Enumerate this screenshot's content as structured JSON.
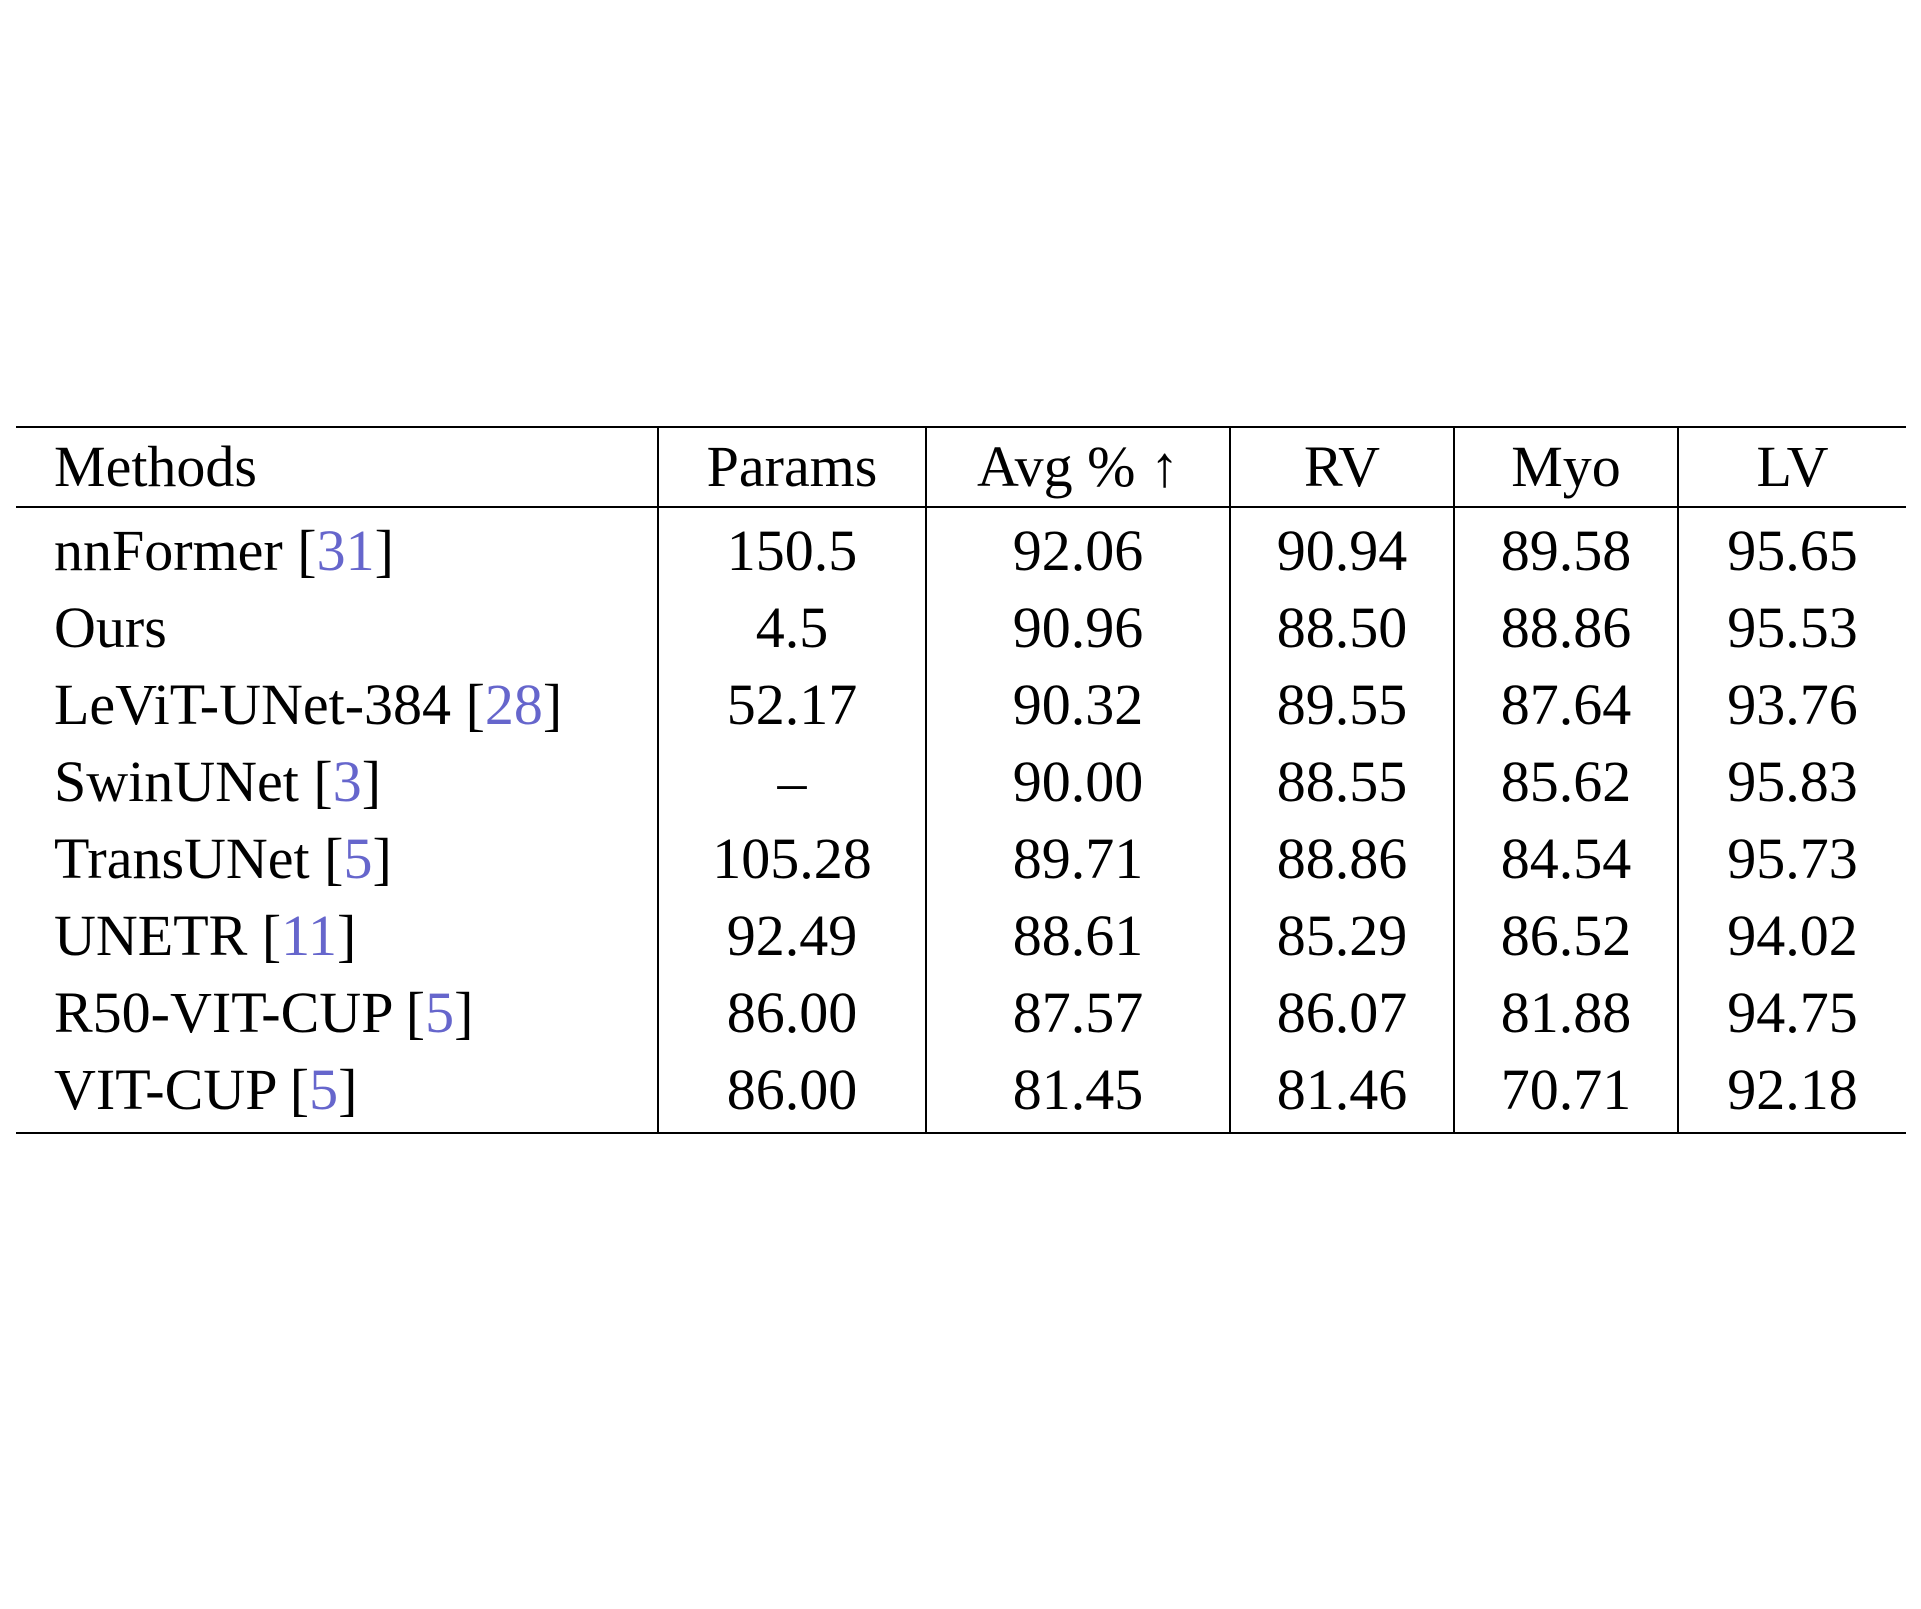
{
  "table": {
    "headers": [
      "Methods",
      "Params",
      "Avg % ↑",
      "RV",
      "Myo",
      "LV"
    ],
    "rows": [
      {
        "method": "nnFormer",
        "ref": "31",
        "params": "150.5",
        "avg": "92.06",
        "rv": "90.94",
        "myo": "89.58",
        "lv": "95.65",
        "bold": false
      },
      {
        "method": "Ours",
        "ref": "",
        "params": "4.5",
        "avg": "90.96",
        "rv": "88.50",
        "myo": "88.86",
        "lv": "95.53",
        "bold": true
      },
      {
        "method": "LeViT-UNet-384",
        "ref": "28",
        "params": "52.17",
        "avg": "90.32",
        "rv": "89.55",
        "myo": "87.64",
        "lv": "93.76",
        "bold": false
      },
      {
        "method": "SwinUNet",
        "ref": "3",
        "params": "–",
        "avg": "90.00",
        "rv": "88.55",
        "myo": "85.62",
        "lv": "95.83",
        "bold": false
      },
      {
        "method": "TransUNet",
        "ref": "5",
        "params": "105.28",
        "avg": "89.71",
        "rv": "88.86",
        "myo": "84.54",
        "lv": "95.73",
        "bold": false
      },
      {
        "method": "UNETR",
        "ref": "11",
        "params": "92.49",
        "avg": "88.61",
        "rv": "85.29",
        "myo": "86.52",
        "lv": "94.02",
        "bold": false
      },
      {
        "method": "R50-VIT-CUP",
        "ref": "5",
        "params": "86.00",
        "avg": "87.57",
        "rv": "86.07",
        "myo": "81.88",
        "lv": "94.75",
        "bold": false
      },
      {
        "method": "VIT-CUP",
        "ref": "5",
        "params": "86.00",
        "avg": "81.45",
        "rv": "81.46",
        "myo": "70.71",
        "lv": "92.18",
        "bold": false
      }
    ]
  },
  "colors": {
    "text": "#000000",
    "citation": "#6666cc",
    "rule": "#000000"
  }
}
